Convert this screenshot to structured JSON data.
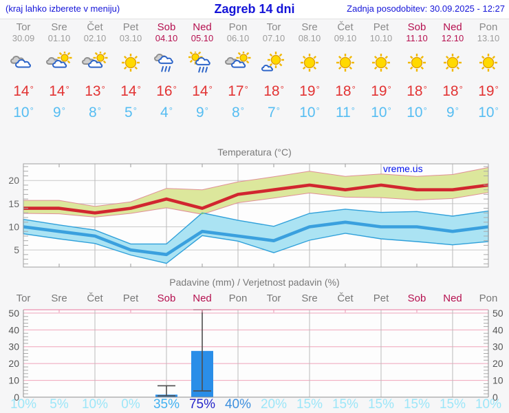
{
  "header": {
    "left_note": "(kraj lahko izberete v meniju)",
    "title": "Zagreb 14 dni",
    "updated": "Zadnja posodobitev: 30.09.2025 - 12:27"
  },
  "watermark": "vreme.us",
  "colors": {
    "header_blue": "#1414d8",
    "weekend": "#b5104f",
    "day_gray": "#8a8a8a",
    "tmax_red": "#e23333",
    "tmin_blue": "#56bdf2",
    "temp_line_max": "#d1262f",
    "temp_band_max": "#dce79c",
    "temp_band_max_edge": "#e08f96",
    "temp_line_min": "#3aa0de",
    "temp_band_min": "#abe3f3",
    "temp_band_min_edge": "#2fa0da",
    "band_overlap": "#8cc963",
    "bar_blue": "#2a8ee8",
    "whisker_gray": "#4d4d4d",
    "precip_grid_pink": "#f0a3ba",
    "precip_top_pink": "#ec8fae",
    "prob_low": "#9ce6f8",
    "prob_35": "#41b1f1",
    "prob_40": "#3e90de",
    "prob_75": "#2626c9"
  },
  "forecast": {
    "days": [
      {
        "name": "Tor",
        "date": "30.09",
        "icon": "cloudy",
        "tmax": "14",
        "tmin": "10",
        "weekend": false
      },
      {
        "name": "Sre",
        "date": "01.10",
        "icon": "partly-cloudy",
        "tmax": "14",
        "tmin": "9",
        "weekend": false
      },
      {
        "name": "Čet",
        "date": "02.10",
        "icon": "partly-cloudy",
        "tmax": "13",
        "tmin": "8",
        "weekend": false
      },
      {
        "name": "Pet",
        "date": "03.10",
        "icon": "sunny",
        "tmax": "14",
        "tmin": "5",
        "weekend": false
      },
      {
        "name": "Sob",
        "date": "04.10",
        "icon": "rain",
        "tmax": "16",
        "tmin": "4",
        "weekend": true
      },
      {
        "name": "Ned",
        "date": "05.10",
        "icon": "sun-rain",
        "tmax": "14",
        "tmin": "9",
        "weekend": true
      },
      {
        "name": "Pon",
        "date": "06.10",
        "icon": "partly-cloudy",
        "tmax": "17",
        "tmin": "8",
        "weekend": false
      },
      {
        "name": "Tor",
        "date": "07.10",
        "icon": "mostly-sunny",
        "tmax": "18",
        "tmin": "7",
        "weekend": false
      },
      {
        "name": "Sre",
        "date": "08.10",
        "icon": "sunny",
        "tmax": "19",
        "tmin": "10",
        "weekend": false
      },
      {
        "name": "Čet",
        "date": "09.10",
        "icon": "sunny",
        "tmax": "18",
        "tmin": "11",
        "weekend": false
      },
      {
        "name": "Pet",
        "date": "10.10",
        "icon": "sunny",
        "tmax": "19",
        "tmin": "10",
        "weekend": false
      },
      {
        "name": "Sob",
        "date": "11.10",
        "icon": "sunny",
        "tmax": "18",
        "tmin": "10",
        "weekend": true
      },
      {
        "name": "Ned",
        "date": "12.10",
        "icon": "sunny",
        "tmax": "18",
        "tmin": "9",
        "weekend": true
      },
      {
        "name": "Pon",
        "date": "13.10",
        "icon": "sunny",
        "tmax": "19",
        "tmin": "10",
        "weekend": false
      }
    ]
  },
  "chart_data": [
    {
      "type": "line",
      "title": "Temperatura (°C)",
      "categories": [
        "Tor 30.09",
        "Sre 01.10",
        "Čet 02.10",
        "Pet 03.10",
        "Sob 04.10",
        "Ned 05.10",
        "Pon 06.10",
        "Tor 07.10",
        "Sre 08.10",
        "Čet 09.10",
        "Pet 10.10",
        "Sob 11.10",
        "Ned 12.10",
        "Pon 13.10"
      ],
      "ylim": [
        1.3,
        23.6
      ],
      "yticks": [
        5,
        10,
        15,
        20
      ],
      "grid": true,
      "legend": "none",
      "series": [
        {
          "name": "max-temperature",
          "values": [
            14,
            14,
            13,
            14,
            16,
            14,
            17,
            18,
            19,
            18,
            19,
            18,
            18,
            19
          ]
        },
        {
          "name": "min-temperature",
          "values": [
            10,
            9,
            8,
            5,
            4,
            9,
            8,
            7,
            10,
            11,
            10,
            10,
            9,
            10
          ]
        }
      ],
      "bands": [
        {
          "name": "max-temperature-range",
          "upper": [
            15.7,
            15.7,
            14.4,
            15.4,
            18.3,
            18.0,
            19.7,
            20.8,
            22.0,
            20.9,
            21.4,
            20.9,
            21.3,
            22.8
          ],
          "lower": [
            12.9,
            12.8,
            12.1,
            12.9,
            14.1,
            12.7,
            15.2,
            16.2,
            17.3,
            16.4,
            16.3,
            15.8,
            16.1,
            17.4
          ]
        },
        {
          "name": "min-temperature-range",
          "upper": [
            11.6,
            10.4,
            9.3,
            6.3,
            6.3,
            13.0,
            11.4,
            10.1,
            12.9,
            13.8,
            13.1,
            13.3,
            12.3,
            13.4
          ],
          "lower": [
            8.5,
            7.4,
            6.4,
            3.9,
            2.1,
            8.1,
            6.9,
            4.4,
            7.1,
            8.6,
            7.4,
            6.8,
            6.1,
            6.8
          ]
        }
      ],
      "annotations": [
        "vreme.us"
      ]
    },
    {
      "type": "bar",
      "title": "Padavine (mm) / Verjetnost padavin (%)",
      "categories": [
        "Tor",
        "Sre",
        "Čet",
        "Pet",
        "Sob",
        "Ned",
        "Pon",
        "Tor",
        "Sre",
        "Čet",
        "Pet",
        "Sob",
        "Ned",
        "Pon"
      ],
      "weekend_flags": [
        false,
        false,
        false,
        false,
        true,
        true,
        false,
        false,
        false,
        false,
        false,
        true,
        true,
        false
      ],
      "values": [
        0,
        0,
        0,
        0,
        1.5,
        27.5,
        0,
        0,
        0,
        0,
        0,
        0,
        0,
        0
      ],
      "whiskers": [
        {
          "index": 4,
          "low": 0.8,
          "high": 6.8
        },
        {
          "index": 5,
          "low": 3.7,
          "high": 52
        }
      ],
      "probabilities": [
        10,
        5,
        10,
        0,
        35,
        75,
        40,
        20,
        15,
        15,
        15,
        15,
        15,
        10
      ],
      "prob_labels": [
        "10%",
        "5%",
        "10%",
        "0%",
        "35%",
        "75%",
        "40%",
        "20%",
        "15%",
        "15%",
        "15%",
        "15%",
        "15%",
        "10%"
      ],
      "ylim": [
        0,
        52
      ],
      "yticks": [
        0,
        10,
        20,
        30,
        40,
        50
      ],
      "grid": true,
      "legend": "none"
    }
  ]
}
